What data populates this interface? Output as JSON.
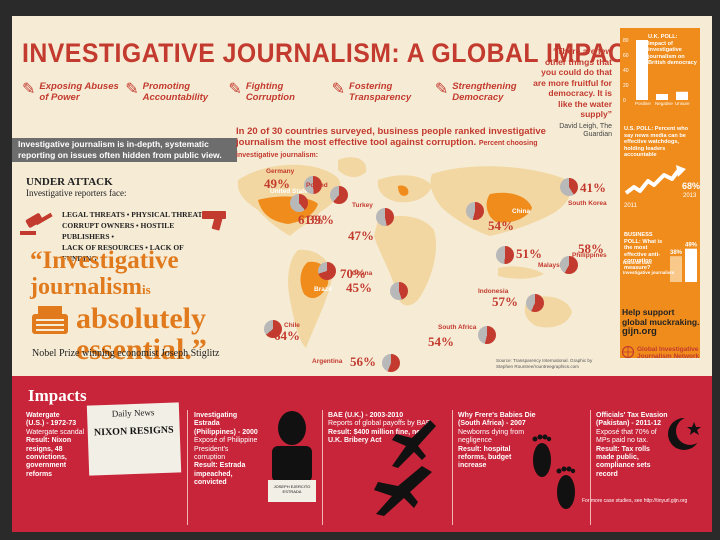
{
  "title": "INVESTIGATIVE JOURNALISM: A GLOBAL IMPACT",
  "themes": [
    {
      "icon": "pencil-icon",
      "label": "Exposing Abuses of Power"
    },
    {
      "icon": "pencil-icon",
      "label": "Promoting Accountability"
    },
    {
      "icon": "pencil-icon",
      "label": "Fighting Corruption"
    },
    {
      "icon": "pencil-icon",
      "label": "Fostering Transparency"
    },
    {
      "icon": "pencil-icon",
      "label": "Strengthening Democracy"
    }
  ],
  "quote_top": {
    "text": "“There are few other things that you could do that are more fruitful for democracy. It is like the water supply”",
    "source": "David Leigh, The Guardian"
  },
  "uk_poll": {
    "title": "U.K. POLL: Impact of investigative journalism on British democracy",
    "ticks": [
      "80",
      "60",
      "40",
      "20",
      "0"
    ],
    "labels": [
      "Positive",
      "Negative",
      "Unsure"
    ],
    "values": [
      81,
      8,
      11
    ]
  },
  "us_poll": {
    "title": "U.S. POLL: Percent who say news media can be effective watchdogs, holding leaders accountable",
    "start_year": "2011",
    "start_value": "",
    "end_value": "68%",
    "end_year": "2013"
  },
  "business_poll": {
    "title": "BUSINESS POLL: What is the most effective anti-corruption measure?",
    "labels": [
      "National laws",
      "Investigative journalism"
    ],
    "values_text": [
      "38%",
      "49%"
    ],
    "values": [
      38,
      49
    ]
  },
  "intro": "Investigative journalism is in-depth, systematic reporting on issues often hidden from public view.",
  "under_attack": {
    "heading": "UNDER ATTACK",
    "sub": "Investigative reporters face:",
    "threats": [
      "LEGAL THREATS • PHYSICAL THREATS •",
      "CORRUPT OWNERS • HOSTILE PUBLISHERS •",
      "LACK OF RESOURCES • LACK OF FUNDING"
    ]
  },
  "big_quote": {
    "l1": "“Investigative",
    "l2a": "journalism",
    "l2b": "is",
    "l3": "absolutely",
    "l4": "essential.”",
    "attribution": "Nobel Prize winning economist Joseph Stiglitz"
  },
  "map": {
    "heading": "In 20 of 30 countries surveyed, business people ranked investigative journalism the most effective tool against corruption.",
    "subheading": "Percent choosing investigative journalism:",
    "countries": [
      {
        "name": "United States",
        "pct": "39%",
        "value": 39
      },
      {
        "name": "Germany",
        "pct": "49%",
        "value": 49
      },
      {
        "name": "Poland",
        "pct": "61%",
        "value": 61
      },
      {
        "name": "Turkey",
        "pct": "47%",
        "value": 47
      },
      {
        "name": "China",
        "pct": "54%",
        "value": 54
      },
      {
        "name": "South Korea",
        "pct": "41%",
        "value": 41
      },
      {
        "name": "Malaysia",
        "pct": "51%",
        "value": 51
      },
      {
        "name": "Philippines",
        "pct": "58%",
        "value": 58
      },
      {
        "name": "Indonesia",
        "pct": "57%",
        "value": 57
      },
      {
        "name": "South Africa",
        "pct": "54%",
        "value": 54
      },
      {
        "name": "Ghana",
        "pct": "45%",
        "value": 45
      },
      {
        "name": "Brazil",
        "pct": "70%",
        "value": 70
      },
      {
        "name": "Chile",
        "pct": "64%",
        "value": 64
      },
      {
        "name": "Argentina",
        "pct": "56%",
        "value": 56
      }
    ],
    "source": "Source: Transparency International. Graphic by Stephen Rountree/rountreegraphics.com"
  },
  "help": {
    "line1": "Help support",
    "line2": "global muckraking.",
    "line3": "gijn.org"
  },
  "gijn_logo": "Global Investigative Journalism Network",
  "impacts": {
    "heading": "Impacts",
    "cases": [
      {
        "title": "Watergate",
        "meta": "(U.S.) - 1972-73",
        "body": "Watergate scandal",
        "result": "Result: Nixon resigns, 48 convictions, government reforms"
      },
      {
        "title": "Investigating Estrada",
        "meta": "(Philippines) - 2000",
        "body": "Exposé of Philippine President's corruption",
        "result": "Result: Estrada impeached, convicted"
      },
      {
        "title": "BAE",
        "meta": "(U.K.) - 2003-2010",
        "body": "Reports of global payoffs by BAE",
        "result": "Result: $400 million fine, new U.K. Bribery Act"
      },
      {
        "title": "Why Frere's Babies Die",
        "meta": "(South Africa) - 2007",
        "body": "Newborns dying from negligence",
        "result": "Result: hospital reforms, budget increase"
      },
      {
        "title": "Officials' Tax Evasion",
        "meta": "(Pakistan) - 2011-12",
        "body": "Exposé that 70% of MPs paid no tax.",
        "result": "Result: Tax rolls made public, compliance sets record"
      }
    ],
    "newspaper_title": "Daily News",
    "newspaper_headline": "NIXON RESIGNS",
    "mugshot_plate": "JOSEPH EJERCITO ESTRADA",
    "footnote": "For more case studies, see http://tinyurl.gijn.org"
  }
}
